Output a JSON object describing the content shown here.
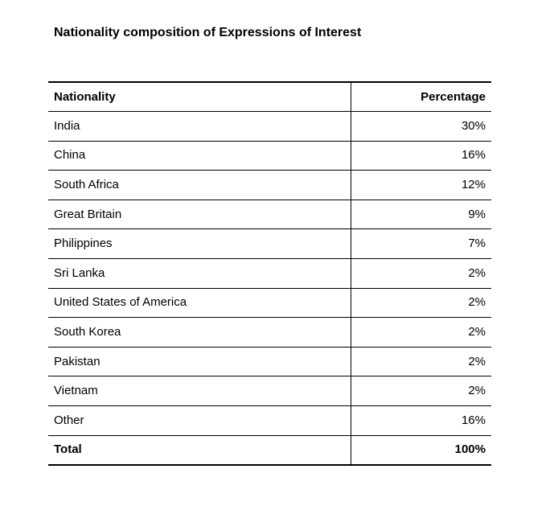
{
  "title": "Nationality composition of Expressions of Interest",
  "table": {
    "headers": {
      "nationality": "Nationality",
      "percentage": "Percentage"
    },
    "rows": [
      {
        "nationality": "India",
        "percentage": "30%"
      },
      {
        "nationality": "China",
        "percentage": "16%"
      },
      {
        "nationality": "South Africa",
        "percentage": "12%"
      },
      {
        "nationality": "Great Britain",
        "percentage": "9%"
      },
      {
        "nationality": "Philippines",
        "percentage": "7%"
      },
      {
        "nationality": "Sri Lanka",
        "percentage": "2%"
      },
      {
        "nationality": "United States of America",
        "percentage": "2%"
      },
      {
        "nationality": "South Korea",
        "percentage": "2%"
      },
      {
        "nationality": "Pakistan",
        "percentage": "2%"
      },
      {
        "nationality": "Vietnam",
        "percentage": "2%"
      },
      {
        "nationality": "Other",
        "percentage": "16%"
      }
    ],
    "total": {
      "nationality": "Total",
      "percentage": "100%"
    }
  }
}
